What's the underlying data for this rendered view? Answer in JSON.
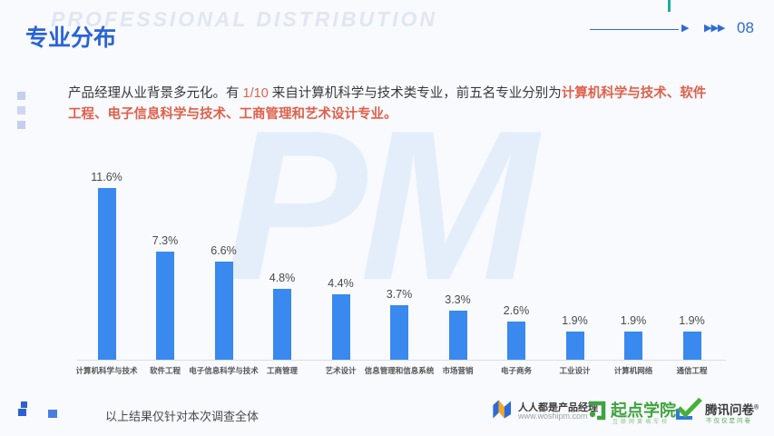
{
  "header": {
    "watermark": "PROFESSIONAL DISTRIBUTION",
    "title": "专业分布",
    "arrow_single": "▶",
    "arrow_triple": "▶▶▶",
    "page_number": "08",
    "accent_blue": "#2a63d8",
    "accent_teal": "#1cae9b"
  },
  "intro": {
    "text_1": "产品经理从业背景多元化。有 ",
    "highlight_fraction": "1/10",
    "text_2": " 来自计算机科学与技术类专业，前五名专业分别为",
    "highlight_majors": "计算机科学与技术、软件工程、电子信息科学与技术、工商管理和艺术设计专业。",
    "highlight_color": "#e0604a"
  },
  "chart_data": {
    "type": "bar",
    "title": "",
    "xlabel": "",
    "ylabel": "",
    "ylim": [
      0,
      12
    ],
    "grid": false,
    "legend": false,
    "watermark": "PM",
    "bar_color": "#3989ee",
    "categories": [
      "计算机科学与技术",
      "软件工程",
      "电子信息科学与技术",
      "工商管理",
      "艺术设计",
      "信息管理和信息系统",
      "市场营销",
      "电子商务",
      "工业设计",
      "计算机网络",
      "通信工程"
    ],
    "values": [
      11.6,
      7.3,
      6.6,
      4.8,
      4.4,
      3.7,
      3.3,
      2.6,
      1.9,
      1.9,
      1.9
    ],
    "labels": [
      "11.6%",
      "7.3%",
      "6.6%",
      "4.8%",
      "4.4%",
      "3.7%",
      "3.3%",
      "2.6%",
      "1.9%",
      "1.9%",
      "1.9%"
    ]
  },
  "footer": {
    "note": "以上结果仅针对本次调查全体",
    "logos": {
      "woshipm": {
        "name": "人人都是产品经理",
        "url": "www.woshipm.com"
      },
      "qidian": {
        "name": "起点学院",
        "tagline": "互联网黄埔军校"
      },
      "tencent": {
        "name": "腾讯问卷",
        "reg": "®",
        "tagline": "不仅仅是问卷"
      }
    }
  }
}
